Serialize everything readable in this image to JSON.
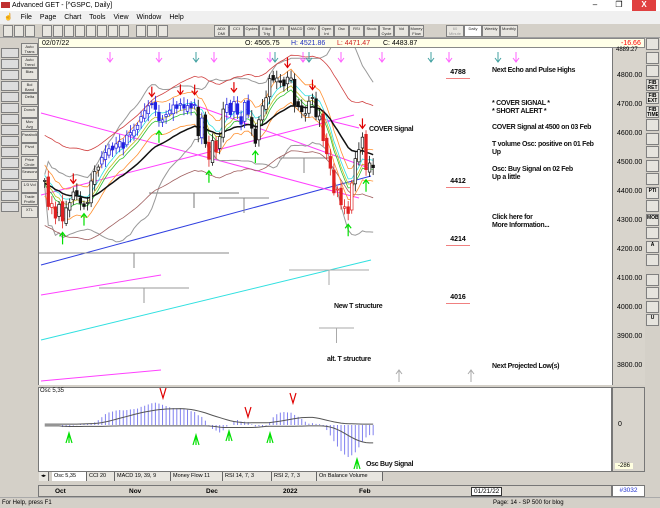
{
  "window": {
    "title": "Advanced GET - [^GSPC, Daily]",
    "minimize": "–",
    "restore": "❐",
    "close": "X"
  },
  "menu": [
    "File",
    "Page",
    "Chart",
    "Tools",
    "View",
    "Window",
    "Help"
  ],
  "toolbar": {
    "study_buttons": [
      "ADX DMI",
      "CCI",
      "Cycles",
      "Elliot Trig",
      "JTI",
      "MACD",
      "OBV",
      "Open Int",
      "Osc",
      "RSI",
      "Stock",
      "Time Cycle",
      "Vol",
      "Money Flow"
    ],
    "timeframes": [
      {
        "label": "60 Minute",
        "state": "disabled"
      },
      {
        "label": "Daily",
        "state": "selected"
      },
      {
        "label": "Weekly",
        "state": "normal"
      },
      {
        "label": "Monthly",
        "state": "normal"
      }
    ]
  },
  "info": {
    "date": "02/07/22",
    "open": "O: 4505.75",
    "high": "H: 4521.86",
    "low": "L: 4471.47",
    "close": "C: 4483.87",
    "change": "-16.66"
  },
  "left_tools": [
    "Auto Trans",
    "Auto Trend",
    "Bias",
    "Bol Band",
    "Delta",
    "Donch",
    "Mov Avg",
    "Parabolic",
    "Pivot",
    "Price Circle",
    "Seasonals",
    "1/3 Vol",
    "Trade Profile",
    "XTL"
  ],
  "left_icons": [
    "ellipse-tool-icon",
    "xtl-tool-icon",
    "wave-tool-icon",
    "ruler-icon",
    "fib-icon",
    "arrow-up-icon",
    "arrow-down-icon",
    "arrow-left-icon",
    "arrow-right-icon",
    "ratio-icon",
    "spacing-icon",
    "scale-icon",
    "rectangle-icon",
    "lines-icon",
    "wave-pen-icon"
  ],
  "right_tools": [
    "close-icon",
    "pencil-icon",
    "trendline-icon",
    "FIB RET",
    "FIB EXT",
    "FIB TIME",
    "fan-icon",
    "channel-icon",
    "box-icon",
    "ellipse-icon",
    "cycle-icon",
    "PTI",
    "grid-icon",
    "MOB",
    "target-icon",
    "A",
    "zoom-icon",
    "paint-icon",
    "fit-icon",
    "copy-icon",
    "U"
  ],
  "price_axis": {
    "top": "4889.27",
    "ticks": [
      "4800.00",
      "4700.00",
      "4600.00",
      "4500.00",
      "4400.00",
      "4300.00",
      "4200.00",
      "4100.00",
      "4000.00",
      "3900.00",
      "3800.00"
    ]
  },
  "annotations": {
    "cover": "COVER Signal",
    "new_t": "New T structure",
    "alt_t": "alt. T structure"
  },
  "levels": [
    "4788",
    "4412",
    "4214",
    "4016"
  ],
  "signals": {
    "echo": "Next Echo and Pulse Highs",
    "cover_signal": "* COVER SIGNAL *",
    "short_alert": "* SHORT ALERT *",
    "cover_at": "COVER Signal at 4500 on 03 Feb",
    "tvol": "T volume Osc: positive on 01 Feb",
    "tvol_dir": "Up",
    "osc": "Osc: Buy Signal on 02 Feb",
    "osc_dir": "Up a little",
    "click1": "Click here for",
    "click2": "More Information...",
    "proj_low": "Next Projected Low(s)"
  },
  "osc": {
    "label": "Osc 5,35",
    "buy": "Osc Buy Signal",
    "zero": "0",
    "min": "-286"
  },
  "tabs": [
    "Osc 5,35",
    "CCI 20",
    "MACD 19, 39, 9",
    "Money Flow 11",
    "RSI 14, 7, 3",
    "RSI 2, 7, 3",
    "On Balance Volume"
  ],
  "date_axis": {
    "months": [
      "Oct",
      "Nov",
      "Dec",
      "2022",
      "Feb"
    ],
    "cursor_date": "01/21/22",
    "bar_count": "#3032"
  },
  "status": {
    "help": "For Help, press F1",
    "page": "Page: 14 - SP 500 for blog"
  },
  "colors": {
    "up_candle": "#2020e0",
    "down_candle": "#e02020",
    "neutral_candle": "#111111",
    "sell_arrow": "#e00000",
    "buy_arrow": "#00e000",
    "change": "#ff0000"
  },
  "chart_data": {
    "type": "candlestick",
    "symbol": "^GSPC",
    "interval": "Daily",
    "ylim": [
      3750,
      4890
    ],
    "closes": [
      4440,
      4350,
      4360,
      4310,
      4357,
      4300,
      4345,
      4363,
      4400,
      4391,
      4361,
      4350,
      4364,
      4438,
      4471,
      4486,
      4519,
      4536,
      4549,
      4545,
      4566,
      4574,
      4551,
      4596,
      4605,
      4613,
      4630,
      4660,
      4680,
      4697,
      4701,
      4685,
      4646,
      4649,
      4667,
      4682,
      4700,
      4688,
      4705,
      4689,
      4698,
      4690,
      4701,
      4594,
      4655,
      4567,
      4513,
      4577,
      4538,
      4591,
      4686,
      4701,
      4667,
      4712,
      4668,
      4634,
      4709,
      4668,
      4620,
      4568,
      4649,
      4697,
      4725,
      4791,
      4786,
      4793,
      4778,
      4766,
      4796,
      4793,
      4700,
      4696,
      4677,
      4670,
      4713,
      4726,
      4659,
      4662,
      4577,
      4532,
      4482,
      4397,
      4410,
      4356,
      4349,
      4326,
      4431,
      4515,
      4546,
      4589,
      4477,
      4500,
      4484
    ]
  }
}
